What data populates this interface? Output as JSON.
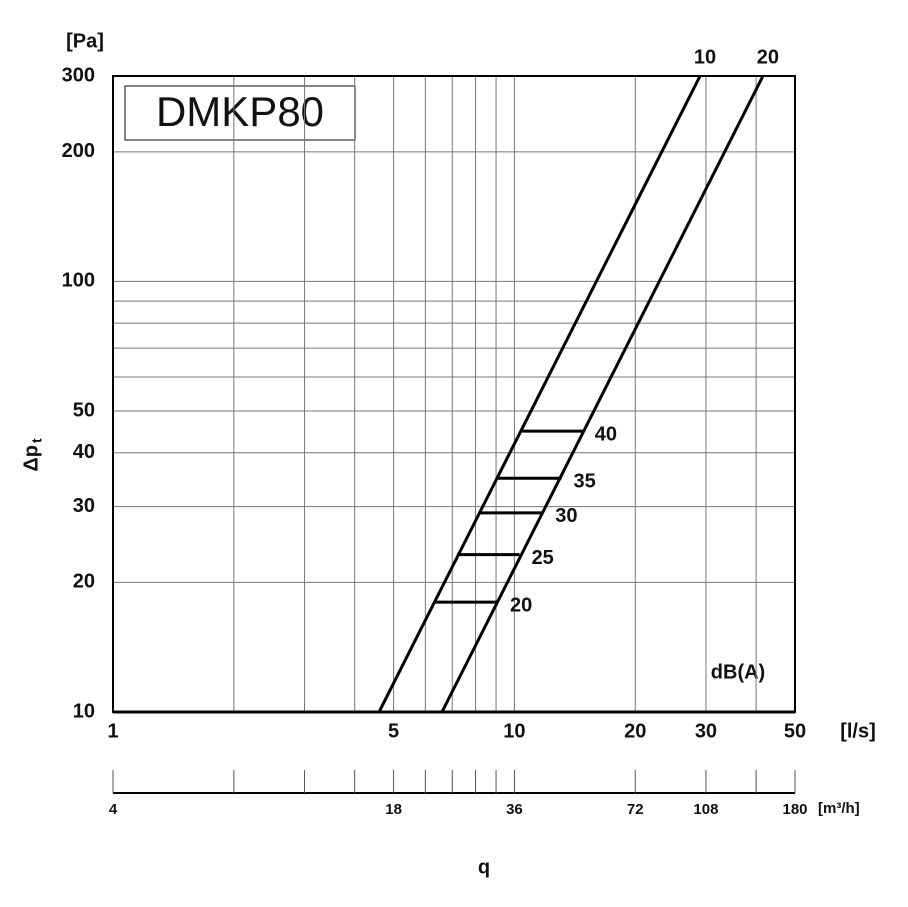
{
  "chart_data": {
    "type": "line",
    "title": "DMKP80",
    "ylabel": "Δp",
    "ylabel_sub": "t",
    "yunit": "[Pa]",
    "xunit": "[l/s]",
    "x2unit": "[m³/h]",
    "xlabel": "q",
    "note": "dB(A)",
    "log_x": true,
    "log_y": true,
    "grid": true,
    "color": "#000000",
    "xlim": [
      1,
      50
    ],
    "ylim": [
      10,
      300
    ],
    "xticks": [
      1,
      5,
      10,
      20,
      30,
      50
    ],
    "xminor": [
      2,
      3,
      4,
      6,
      7,
      8,
      9,
      40
    ],
    "yticks": [
      10,
      20,
      30,
      40,
      50,
      100,
      200,
      300
    ],
    "yminor": [
      60,
      70,
      80,
      90
    ],
    "x2ticks": [
      {
        "value": 1,
        "label": "4"
      },
      {
        "value": 5,
        "label": "18"
      },
      {
        "value": 10,
        "label": "36"
      },
      {
        "value": 20,
        "label": "72"
      },
      {
        "value": 30,
        "label": "108"
      },
      {
        "value": 50,
        "label": "180"
      }
    ],
    "series": [
      {
        "name": "10",
        "x": [
          4.6,
          29
        ],
        "values": [
          10,
          300
        ]
      },
      {
        "name": "20",
        "x": [
          6.6,
          41.6
        ],
        "values": [
          10,
          300
        ]
      }
    ],
    "levels": [
      {
        "name": "20",
        "value": 18,
        "x": [
          6.3,
          9.1
        ]
      },
      {
        "name": "25",
        "value": 23.2,
        "x": [
          7.2,
          10.3
        ]
      },
      {
        "name": "30",
        "value": 29,
        "x": [
          8.2,
          11.8
        ]
      },
      {
        "name": "35",
        "value": 34.9,
        "x": [
          9.05,
          13.1
        ]
      },
      {
        "name": "40",
        "value": 44.9,
        "x": [
          10.45,
          14.8
        ]
      }
    ]
  }
}
